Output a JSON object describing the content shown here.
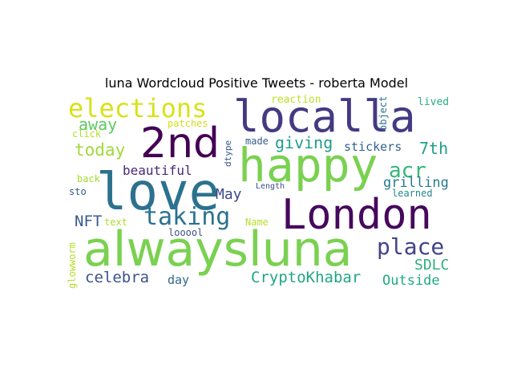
{
  "figure": {
    "title": "luna Wordcloud Positive Tweets - roberta Model"
  },
  "wordcloud": {
    "words": [
      {
        "text": "alwaysluna",
        "color": "#7ad151"
      },
      {
        "text": "London",
        "color": "#46085c"
      },
      {
        "text": "love",
        "color": "#2c728e"
      },
      {
        "text": "happy",
        "color": "#7ad151"
      },
      {
        "text": "localla",
        "color": "#443a83"
      },
      {
        "text": "2nd",
        "color": "#440154"
      },
      {
        "text": "elections",
        "color": "#d8e219"
      },
      {
        "text": "taking",
        "color": "#2c728e"
      },
      {
        "text": "place",
        "color": "#414487"
      },
      {
        "text": "acr",
        "color": "#35b779"
      },
      {
        "text": "CryptoKhabar",
        "color": "#21a585"
      },
      {
        "text": "giving",
        "color": "#1f9e89"
      },
      {
        "text": "today",
        "color": "#a0da39"
      },
      {
        "text": "away",
        "color": "#5ec962"
      },
      {
        "text": "celebra",
        "color": "#3b528b"
      },
      {
        "text": "SDLC",
        "color": "#2ab07f"
      },
      {
        "text": "Outside",
        "color": "#22a884"
      },
      {
        "text": "grilling",
        "color": "#2a788e"
      },
      {
        "text": "7th",
        "color": "#1f9e89"
      },
      {
        "text": "stickers",
        "color": "#33638d"
      },
      {
        "text": "beautiful",
        "color": "#482878"
      },
      {
        "text": "May",
        "color": "#3e4989"
      },
      {
        "text": "NFT",
        "color": "#38598c"
      },
      {
        "text": "day",
        "color": "#31688e"
      },
      {
        "text": "looool",
        "color": "#3e4c8a"
      },
      {
        "text": "reaction",
        "color": "#bddf26"
      },
      {
        "text": "patches",
        "color": "#d0e11c"
      },
      {
        "text": "click",
        "color": "#b5de2b"
      },
      {
        "text": "made",
        "color": "#365c8d"
      },
      {
        "text": "back",
        "color": "#a5db36"
      },
      {
        "text": "sto",
        "color": "#38588c"
      },
      {
        "text": "text",
        "color": "#addc30"
      },
      {
        "text": "Name",
        "color": "#b5de2b"
      },
      {
        "text": "Length",
        "color": "#3e4989"
      },
      {
        "text": "learned",
        "color": "#25858e"
      },
      {
        "text": "lived",
        "color": "#29af7f"
      },
      {
        "text": "object",
        "color": "#2d718e"
      },
      {
        "text": "dtype",
        "color": "#39568c"
      },
      {
        "text": "glowworm",
        "color": "#b5de2b"
      }
    ]
  }
}
